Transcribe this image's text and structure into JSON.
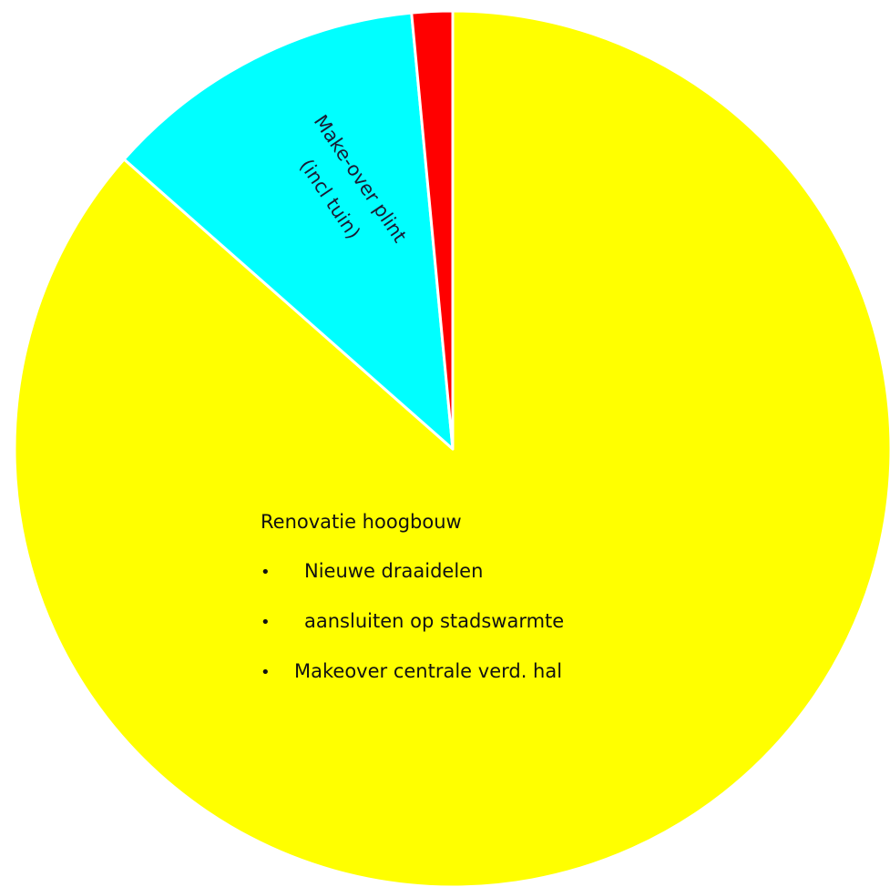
{
  "chart_data": {
    "type": "pie",
    "start_angle_deg": 0,
    "direction": "clockwise",
    "title": "",
    "slices": [
      {
        "name": "Renovatie hoogbouw",
        "value": 86.5,
        "color": "#ffff00",
        "label": {
          "heading": "Renovatie hoogbouw",
          "items": [
            "Nieuwe draaidelen",
            "aansluiten op stadswarmte",
            "Makeover centrale verd. hal"
          ]
        }
      },
      {
        "name": "Make-over plint (incl tuin)",
        "value": 12.0,
        "color": "#00ffff",
        "label": {
          "line1": "Make-over plint",
          "line2": "(incl tuin)"
        }
      },
      {
        "name": "",
        "value": 1.5,
        "color": "#ff0000"
      }
    ],
    "legend": "none",
    "bullet_symbol": "•"
  }
}
